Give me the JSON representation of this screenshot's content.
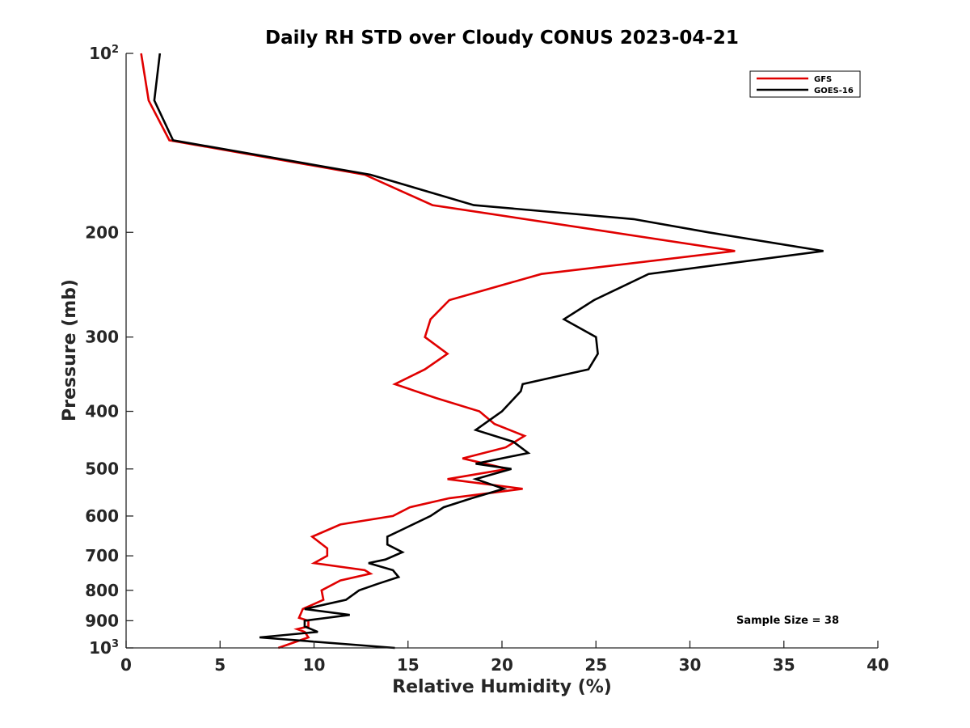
{
  "chart_data": {
    "type": "line",
    "title": "Daily RH STD over Cloudy CONUS 2023-04-21",
    "xlabel": "Relative Humidity (%)",
    "ylabel": "Pressure (mb)",
    "xlim": [
      0,
      40
    ],
    "ylim": [
      100,
      1000
    ],
    "y_scale": "log",
    "y_reversed": true,
    "grid": false,
    "legend_position": "top-right",
    "x_ticks": [
      {
        "value": 0,
        "label": "0"
      },
      {
        "value": 5,
        "label": "5"
      },
      {
        "value": 10,
        "label": "10"
      },
      {
        "value": 15,
        "label": "15"
      },
      {
        "value": 20,
        "label": "20"
      },
      {
        "value": 25,
        "label": "25"
      },
      {
        "value": 30,
        "label": "30"
      },
      {
        "value": 35,
        "label": "35"
      },
      {
        "value": 40,
        "label": "40"
      }
    ],
    "y_ticks": [
      {
        "value": 100,
        "base": "10",
        "exp": "2"
      },
      {
        "value": 200,
        "label": "200"
      },
      {
        "value": 300,
        "label": "300"
      },
      {
        "value": 400,
        "label": "400"
      },
      {
        "value": 500,
        "label": "500"
      },
      {
        "value": 600,
        "label": "600"
      },
      {
        "value": 700,
        "label": "700"
      },
      {
        "value": 800,
        "label": "800"
      },
      {
        "value": 900,
        "label": "900"
      },
      {
        "value": 1000,
        "base": "10",
        "exp": "3"
      }
    ],
    "annotation": "Sample Size = 38",
    "series": [
      {
        "name": "GFS",
        "color": "#e00000",
        "points": [
          [
            0.8,
            100
          ],
          [
            1.2,
            120
          ],
          [
            2.3,
            140
          ],
          [
            12.7,
            160
          ],
          [
            16.3,
            180
          ],
          [
            25.9,
            200
          ],
          [
            32.4,
            215
          ],
          [
            22.1,
            235
          ],
          [
            17.2,
            260
          ],
          [
            16.2,
            280
          ],
          [
            15.9,
            300
          ],
          [
            17.1,
            320
          ],
          [
            15.9,
            340
          ],
          [
            14.3,
            360
          ],
          [
            16.5,
            380
          ],
          [
            18.8,
            400
          ],
          [
            19.6,
            420
          ],
          [
            21.2,
            440
          ],
          [
            20.2,
            460
          ],
          [
            17.9,
            480
          ],
          [
            20.3,
            500
          ],
          [
            17.1,
            520
          ],
          [
            21.1,
            540
          ],
          [
            17.2,
            560
          ],
          [
            15.1,
            580
          ],
          [
            14.2,
            600
          ],
          [
            11.4,
            620
          ],
          [
            9.9,
            650
          ],
          [
            10.7,
            680
          ],
          [
            10.7,
            700
          ],
          [
            10.0,
            720
          ],
          [
            12.7,
            740
          ],
          [
            13.0,
            750
          ],
          [
            11.4,
            770
          ],
          [
            10.4,
            800
          ],
          [
            10.5,
            830
          ],
          [
            9.4,
            860
          ],
          [
            9.2,
            890
          ],
          [
            9.7,
            900
          ],
          [
            9.7,
            920
          ],
          [
            9.1,
            930
          ],
          [
            9.5,
            940
          ],
          [
            9.7,
            960
          ],
          [
            8.1,
            1000
          ]
        ]
      },
      {
        "name": "GOES-16",
        "color": "#000000",
        "points": [
          [
            1.8,
            100
          ],
          [
            1.5,
            120
          ],
          [
            2.5,
            140
          ],
          [
            13.0,
            160
          ],
          [
            18.5,
            180
          ],
          [
            27.0,
            190
          ],
          [
            31.0,
            200
          ],
          [
            37.1,
            215
          ],
          [
            27.8,
            235
          ],
          [
            24.9,
            260
          ],
          [
            23.3,
            280
          ],
          [
            25.0,
            300
          ],
          [
            25.1,
            320
          ],
          [
            24.6,
            340
          ],
          [
            21.1,
            360
          ],
          [
            21.0,
            370
          ],
          [
            20.0,
            400
          ],
          [
            18.6,
            430
          ],
          [
            20.6,
            450
          ],
          [
            21.4,
            470
          ],
          [
            18.6,
            490
          ],
          [
            20.5,
            500
          ],
          [
            18.6,
            520
          ],
          [
            20.1,
            540
          ],
          [
            18.4,
            560
          ],
          [
            16.9,
            580
          ],
          [
            16.2,
            600
          ],
          [
            14.8,
            630
          ],
          [
            13.9,
            650
          ],
          [
            13.9,
            670
          ],
          [
            14.7,
            690
          ],
          [
            13.8,
            710
          ],
          [
            12.9,
            720
          ],
          [
            14.2,
            740
          ],
          [
            14.5,
            760
          ],
          [
            13.4,
            780
          ],
          [
            12.4,
            800
          ],
          [
            11.7,
            830
          ],
          [
            9.5,
            860
          ],
          [
            11.9,
            880
          ],
          [
            9.5,
            900
          ],
          [
            9.5,
            920
          ],
          [
            10.2,
            940
          ],
          [
            7.1,
            960
          ],
          [
            14.3,
            1000
          ]
        ]
      }
    ]
  }
}
